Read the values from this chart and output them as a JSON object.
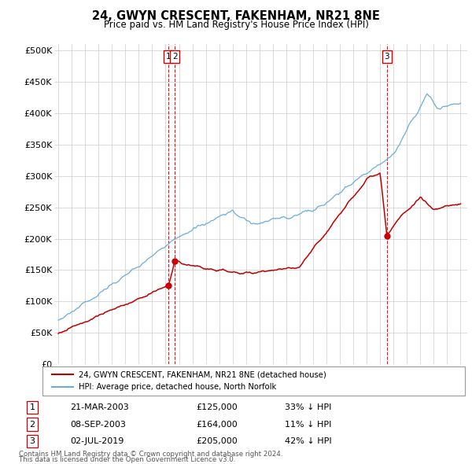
{
  "title": "24, GWYN CRESCENT, FAKENHAM, NR21 8NE",
  "subtitle": "Price paid vs. HM Land Registry's House Price Index (HPI)",
  "yticks": [
    0,
    50000,
    100000,
    150000,
    200000,
    250000,
    300000,
    350000,
    400000,
    450000,
    500000
  ],
  "ytick_labels": [
    "£0",
    "£50K",
    "£100K",
    "£150K",
    "£200K",
    "£250K",
    "£300K",
    "£350K",
    "£400K",
    "£450K",
    "£500K"
  ],
  "ylim": [
    0,
    510000
  ],
  "xlim_start": 1994.7,
  "xlim_end": 2025.5,
  "legend_line1": "24, GWYN CRESCENT, FAKENHAM, NR21 8NE (detached house)",
  "legend_line2": "HPI: Average price, detached house, North Norfolk",
  "transactions": [
    {
      "label": "1",
      "date": "21-MAR-2003",
      "price": 125000,
      "pct": "33%",
      "dir": "↓",
      "year": 2003.22
    },
    {
      "label": "2",
      "date": "08-SEP-2003",
      "price": 164000,
      "pct": "11%",
      "dir": "↓",
      "year": 2003.69
    },
    {
      "label": "3",
      "date": "02-JUL-2019",
      "price": 205000,
      "pct": "42%",
      "dir": "↓",
      "year": 2019.5
    }
  ],
  "footer_line1": "Contains HM Land Registry data © Crown copyright and database right 2024.",
  "footer_line2": "This data is licensed under the Open Government Licence v3.0.",
  "hpi_color": "#6aacdc",
  "price_color": "#c00000",
  "vline_color": "#cc0000",
  "bg_color": "#ffffff",
  "grid_color": "#cccccc"
}
